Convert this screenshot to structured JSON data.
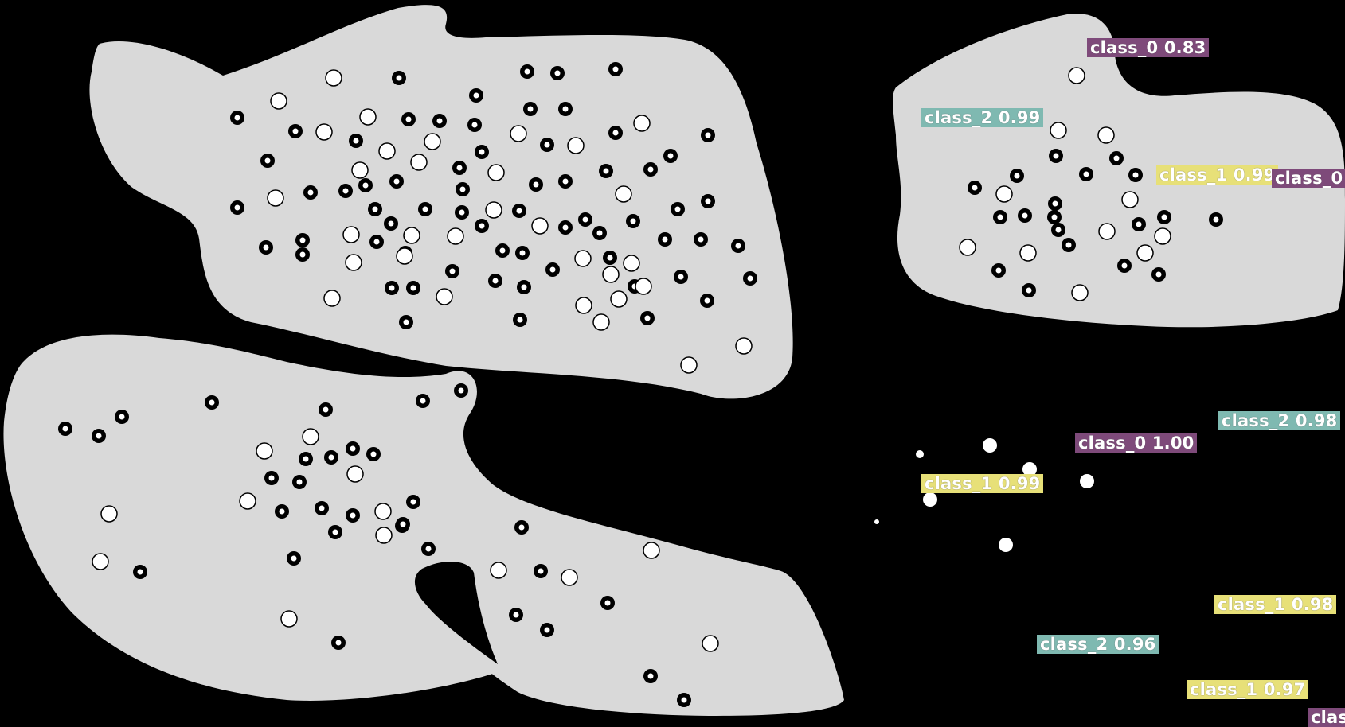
{
  "colors": {
    "background": "#000000",
    "blob": "#d9d9d9",
    "class_0": "#7e4a7a",
    "class_1": "#e7e078",
    "class_2": "#7fb9b1",
    "label_text": "#ffffff"
  },
  "labels": [
    {
      "text": "class_0 0.83",
      "cls": "c0"
    },
    {
      "text": "class_2 0.99",
      "cls": "c2"
    },
    {
      "text": "class_1 0.99",
      "cls": "c1"
    },
    {
      "text": "class_0",
      "cls": "c0"
    },
    {
      "text": "class_2 0.98",
      "cls": "c2"
    },
    {
      "text": "class_0 1.00",
      "cls": "c0"
    },
    {
      "text": "class_1 0.99",
      "cls": "c1"
    },
    {
      "text": "class_1 0.98",
      "cls": "c1"
    },
    {
      "text": "class_2 0.96",
      "cls": "c2"
    },
    {
      "text": "class_1 0.97",
      "cls": "c1"
    },
    {
      "text": "clas",
      "cls": "c0"
    }
  ]
}
